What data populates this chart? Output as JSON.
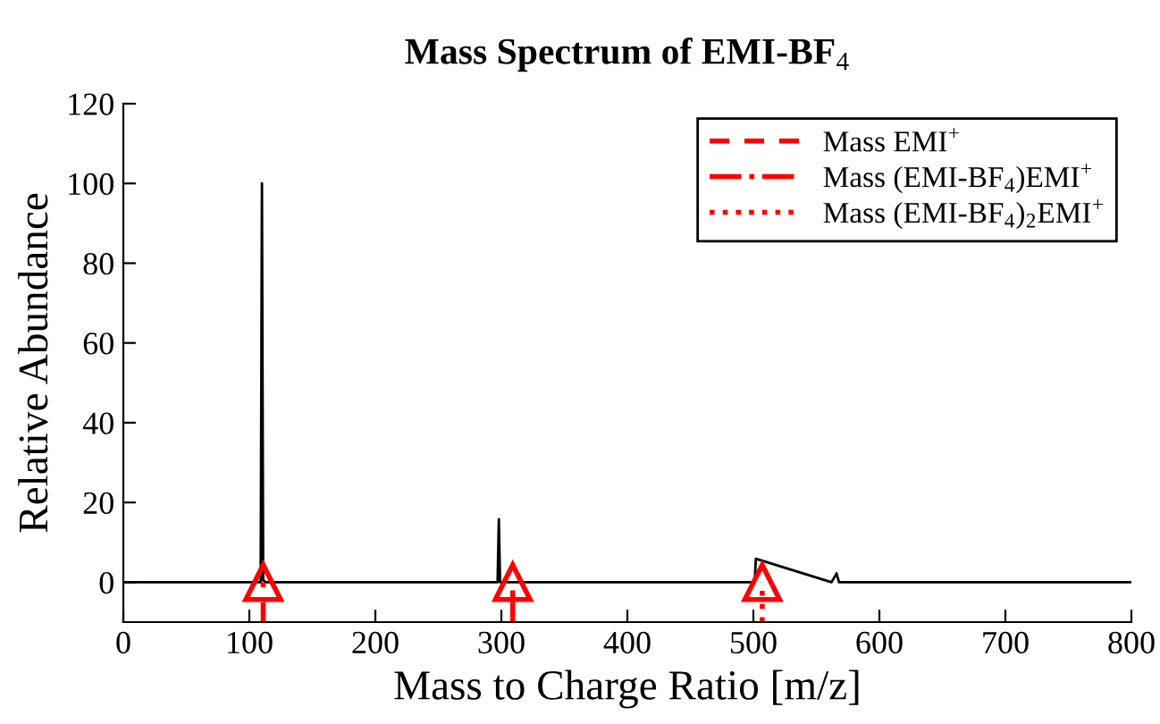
{
  "chart_data": {
    "type": "line",
    "title": "Mass Spectrum of EMI-BF$_{4}$",
    "xlabel": "Mass to Charge Ratio [m/z]",
    "ylabel": "Relative Abundance",
    "xlim": [
      0,
      800
    ],
    "ylim": [
      -10,
      120
    ],
    "xticks": [
      0,
      100,
      200,
      300,
      400,
      500,
      600,
      700,
      800
    ],
    "yticks": [
      0,
      20,
      40,
      60,
      80,
      100,
      120
    ],
    "grid": false,
    "legend": "top right",
    "series": [
      {
        "color": "#000000",
        "line_style": "solid",
        "marker": "none",
        "x": [
          0,
          109,
          110,
          111,
          113,
          297,
          298,
          299,
          501,
          502,
          562,
          566,
          568,
          800
        ],
        "values": [
          0,
          0,
          100,
          0.5,
          0,
          0,
          15.8,
          0,
          0,
          5.9,
          0,
          2.2,
          0,
          0
        ]
      },
      {
        "name": "Mass EMI$^{+}$",
        "color": "#ff0000",
        "line_style": "dashed",
        "marker": "triangle",
        "x": [
          111,
          111
        ],
        "values": [
          -10,
          0
        ]
      },
      {
        "name": "Mass (EMI-BF$_{4}$)EMI$^{+}$",
        "color": "#ff0000",
        "line_style": "dashdot",
        "marker": "triangle",
        "x": [
          309,
          309
        ],
        "values": [
          -10,
          0
        ]
      },
      {
        "name": "Mass (EMI-BF$_{4}$)$_{2}$EMI$^{+}$",
        "color": "#ff0000",
        "line_style": "dotted",
        "marker": "triangle",
        "x": [
          507,
          507
        ],
        "values": [
          -10,
          0
        ]
      }
    ]
  }
}
